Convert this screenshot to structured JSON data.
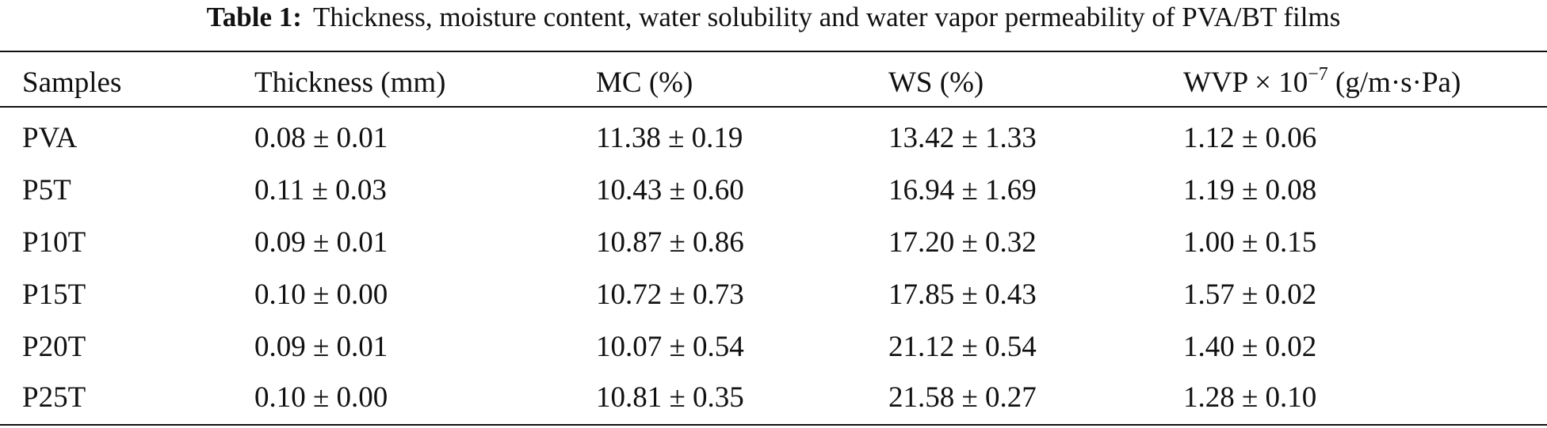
{
  "caption": {
    "label": "Table 1:",
    "text": "Thickness, moisture content, water solubility and water vapor permeability of PVA/BT films"
  },
  "table": {
    "headers": {
      "samples": "Samples",
      "thickness": "Thickness (mm)",
      "mc": "MC (%)",
      "ws": "WS (%)",
      "wvp_prefix": "WVP × 10",
      "wvp_exponent": "−7",
      "wvp_suffix": "(g/m·s·Pa)"
    },
    "rows": [
      [
        "PVA",
        "0.08 ± 0.01",
        "11.38 ± 0.19",
        "13.42 ± 1.33",
        "1.12 ± 0.06"
      ],
      [
        "P5T",
        "0.11 ± 0.03",
        "10.43 ± 0.60",
        "16.94 ± 1.69",
        "1.19 ± 0.08"
      ],
      [
        "P10T",
        "0.09 ± 0.01",
        "10.87 ± 0.86",
        "17.20 ± 0.32",
        "1.00 ± 0.15"
      ],
      [
        "P15T",
        "0.10 ± 0.00",
        "10.72 ± 0.73",
        "17.85 ± 0.43",
        "1.57 ± 0.02"
      ],
      [
        "P20T",
        "0.09 ± 0.01",
        "10.07 ± 0.54",
        "21.12 ± 0.54",
        "1.40 ± 0.02"
      ],
      [
        "P25T",
        "0.10 ± 0.00",
        "10.81 ± 0.35",
        "21.58 ± 0.27",
        "1.28 ± 0.10"
      ]
    ]
  }
}
